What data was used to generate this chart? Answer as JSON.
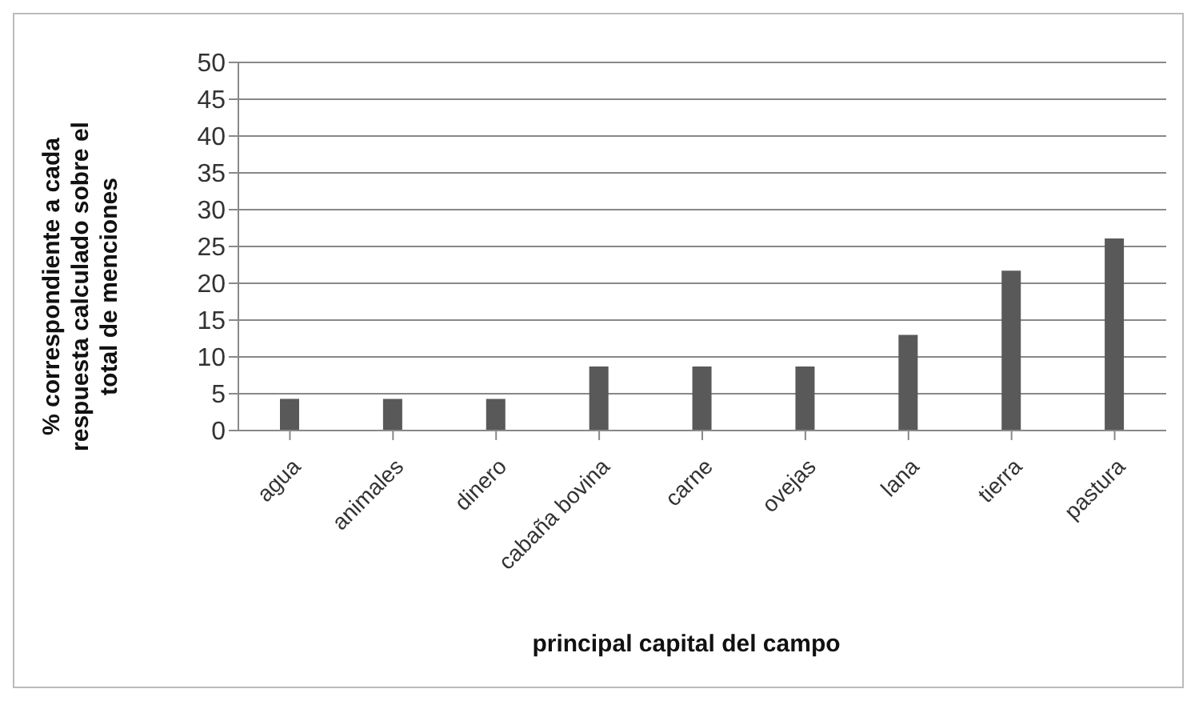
{
  "chart_data": {
    "type": "bar",
    "xlabel": "principal capital del campo",
    "ylabel": "% correspondiente a cada respuesta calculado sobre el total de menciones",
    "categories": [
      "agua",
      "animales",
      "dinero",
      "cabaña bovina",
      "carne",
      "ovejas",
      "lana",
      "tierra",
      "pastura"
    ],
    "values": [
      4.3,
      4.3,
      4.3,
      8.7,
      8.7,
      8.7,
      13,
      21.7,
      26.1
    ],
    "color": "#595959",
    "ylim": [
      0,
      50
    ],
    "yticks": [
      0,
      5,
      10,
      15,
      20,
      25,
      30,
      35,
      40,
      45,
      50
    ],
    "grid": "y"
  }
}
